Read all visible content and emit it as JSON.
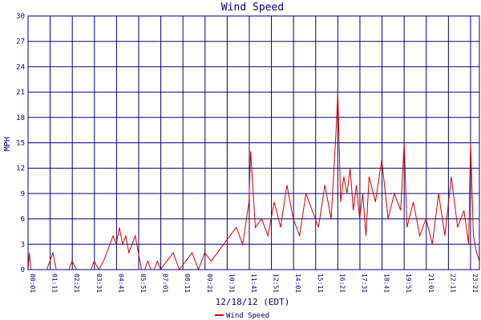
{
  "chart_data": {
    "type": "line",
    "title": "Wind Speed",
    "xlabel": "12/18/12 (EDT)",
    "ylabel": "MPH",
    "ylim": [
      0,
      30
    ],
    "y_ticks": [
      "0",
      "3",
      "6",
      "9",
      "12",
      "15",
      "18",
      "21",
      "24",
      "27",
      "30"
    ],
    "x_ticks": [
      "00:01",
      "01:11",
      "02:21",
      "03:31",
      "04:41",
      "05:51",
      "07:01",
      "08:11",
      "09:21",
      "10:31",
      "11:41",
      "12:51",
      "14:01",
      "15:11",
      "16:21",
      "17:31",
      "18:41",
      "19:51",
      "21:01",
      "22:11",
      "23:21",
      "23:49"
    ],
    "grid": true,
    "legend": "bottom-center",
    "colors": {
      "series": "#cc0000",
      "grid": "#00007a",
      "text": "#00007a"
    },
    "series": [
      {
        "name": "Wind Speed",
        "x": [
          "00:01",
          "00:05",
          "00:10",
          "00:30",
          "01:00",
          "01:20",
          "01:30",
          "02:10",
          "02:20",
          "02:35",
          "03:00",
          "03:20",
          "03:30",
          "03:45",
          "04:00",
          "04:10",
          "04:20",
          "04:30",
          "04:40",
          "04:50",
          "05:00",
          "05:10",
          "05:20",
          "05:30",
          "05:40",
          "05:50",
          "06:00",
          "06:10",
          "06:20",
          "06:30",
          "06:40",
          "06:50",
          "07:00",
          "07:20",
          "07:40",
          "08:00",
          "08:20",
          "08:40",
          "09:00",
          "09:20",
          "09:40",
          "10:00",
          "10:20",
          "10:40",
          "11:00",
          "11:20",
          "11:40",
          "11:45",
          "12:00",
          "12:20",
          "12:40",
          "13:00",
          "13:20",
          "13:40",
          "14:00",
          "14:20",
          "14:40",
          "15:00",
          "15:20",
          "15:40",
          "16:00",
          "16:15",
          "16:21",
          "16:30",
          "16:40",
          "16:50",
          "17:00",
          "17:10",
          "17:20",
          "17:30",
          "17:40",
          "17:50",
          "18:00",
          "18:20",
          "18:40",
          "19:00",
          "19:20",
          "19:40",
          "19:51",
          "20:00",
          "20:20",
          "20:40",
          "21:00",
          "21:20",
          "21:40",
          "22:00",
          "22:20",
          "22:40",
          "23:00",
          "23:15",
          "23:21",
          "23:30",
          "23:40",
          "23:49"
        ],
        "values": [
          0,
          2,
          0,
          0,
          0,
          2,
          0,
          0,
          1,
          0,
          0,
          0,
          1,
          0,
          1,
          2,
          3,
          4,
          3,
          5,
          3,
          4,
          2,
          3,
          4,
          2,
          0,
          0,
          1,
          0,
          0,
          1,
          0,
          1,
          2,
          0,
          1,
          2,
          0,
          2,
          1,
          2,
          3,
          4,
          5,
          3,
          8,
          14,
          5,
          6,
          4,
          8,
          5,
          10,
          6,
          4,
          9,
          7,
          5,
          10,
          6,
          16,
          21,
          8,
          11,
          9,
          12,
          7,
          10,
          6,
          9,
          4,
          11,
          8,
          13,
          6,
          9,
          7,
          15,
          5,
          8,
          4,
          6,
          3,
          9,
          4,
          11,
          5,
          7,
          3,
          15,
          4,
          2,
          1
        ]
      }
    ]
  }
}
